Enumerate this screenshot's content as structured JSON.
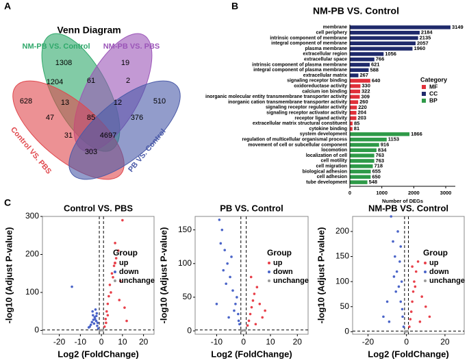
{
  "panel_labels": [
    "A",
    "B",
    "C"
  ],
  "chart_data": [
    {
      "type": "venn",
      "title": "Venn Diagram",
      "sets": [
        {
          "name": "NM-PB VS. Control",
          "color": "#2fa86a"
        },
        {
          "name": "NM-PB VS. PBS",
          "color": "#9b55b8"
        },
        {
          "name": "Control VS. PBS",
          "color": "#e0474c"
        },
        {
          "name": "PB VS. Control",
          "color": "#4a5aa8"
        }
      ],
      "values": [
        1308,
        19,
        628,
        510,
        1204,
        61,
        2,
        13,
        12,
        47,
        85,
        376,
        31,
        4697,
        303
      ]
    },
    {
      "type": "hbar",
      "title": "NM-PB VS. Control",
      "xlabel": "Number of DEGs",
      "legend_title": "Category",
      "categories": [
        "membrane",
        "cell periphery",
        "intrinsic component of membrane",
        "integral component of membrane",
        "plasma membrane",
        "extracellular region",
        "extracellular space",
        "intrinsic component of plasma membrane",
        "integral component of plasma membrane",
        "extracellular matrix",
        "signaling receptor binding",
        "oxidoreductase activity",
        "calcium ion binding",
        "inorganic molecular entity transmembrane transporter activity",
        "inorganic cation transmembrane transporter activity",
        "signaling receptor regulator activity",
        "signaling receptor activator activity",
        "receptor ligand activity",
        "extracellular matrix structural constituent",
        "cytokine binding",
        "system development",
        "regulation of multicellular organismal process",
        "movement of cell or subcellular component",
        "locomotion",
        "localization of cell",
        "cell motility",
        "cell migration",
        "biological adhesion",
        "cell adhesion",
        "tube development"
      ],
      "series": [
        {
          "name": "MF",
          "color": "#e0303a",
          "values": [
            null,
            null,
            null,
            null,
            null,
            null,
            null,
            null,
            null,
            null,
            640,
            330,
            322,
            309,
            260,
            220,
            204,
            203,
            85,
            81,
            null,
            null,
            null,
            null,
            null,
            null,
            null,
            null,
            null,
            null
          ]
        },
        {
          "name": "CC",
          "color": "#1f2a6b",
          "values": [
            3149,
            2184,
            2135,
            2057,
            1960,
            1056,
            766,
            621,
            588,
            267,
            null,
            null,
            null,
            null,
            null,
            null,
            null,
            null,
            null,
            null,
            null,
            null,
            null,
            null,
            null,
            null,
            null,
            null,
            null,
            null
          ]
        },
        {
          "name": "BP",
          "color": "#2e9a48",
          "values": [
            null,
            null,
            null,
            null,
            null,
            null,
            null,
            null,
            null,
            null,
            null,
            null,
            null,
            null,
            null,
            null,
            null,
            null,
            null,
            null,
            1866,
            1153,
            916,
            834,
            763,
            763,
            718,
            655,
            650,
            548
          ]
        }
      ],
      "xlim": [
        0,
        3300
      ],
      "xticks": [
        0,
        1000,
        2000,
        3000
      ]
    },
    {
      "type": "volcano",
      "title": "Control VS. PBS",
      "xlabel": "Log2 (FoldChange)",
      "ylabel": "-log10 (Adjust P-value)",
      "legend_title": "Group",
      "xlim": [
        -28,
        25
      ],
      "xticks": [
        -20,
        -10,
        0,
        10,
        20
      ],
      "ylim": [
        -10,
        300
      ],
      "yticks": [
        0,
        100,
        200,
        300
      ],
      "vlines": [
        -1,
        1
      ],
      "hline": 1.3,
      "series": [
        {
          "name": "up",
          "color": "#e8404a",
          "x": [
            1.5,
            2,
            2.5,
            3,
            3.5,
            4,
            5,
            6,
            7,
            8,
            9,
            10,
            11,
            3,
            4.5,
            2.2,
            6.5,
            8.5,
            5.5,
            12
          ],
          "values": [
            10,
            30,
            50,
            70,
            90,
            120,
            150,
            170,
            190,
            210,
            130,
            290,
            60,
            40,
            100,
            20,
            230,
            80,
            140,
            25
          ]
        },
        {
          "name": "down",
          "color": "#4a64c8",
          "x": [
            -1.5,
            -2,
            -2.5,
            -3,
            -3.5,
            -4,
            -4.5,
            -5,
            -6,
            -2.2,
            -3.2,
            -1.8,
            -4.2,
            -2.8,
            -5.5,
            -14,
            -3.8,
            -2.4
          ],
          "values": [
            5,
            12,
            25,
            30,
            18,
            40,
            22,
            15,
            8,
            45,
            35,
            20,
            50,
            55,
            10,
            115,
            28,
            38
          ]
        },
        {
          "name": "unchange",
          "color": "#999999",
          "x": [
            -0.5,
            0.3,
            -0.8,
            0.6
          ],
          "values": [
            0.5,
            1,
            0.2,
            0.8
          ]
        }
      ]
    },
    {
      "type": "volcano",
      "title": "PB VS. Control",
      "xlabel": "Log2 (FoldChange)",
      "ylabel": "-log10 (Adjust P-value)",
      "legend_title": "Group",
      "xlim": [
        -18,
        24
      ],
      "xticks": [
        -10,
        0,
        10,
        20
      ],
      "ylim": [
        -5,
        170
      ],
      "yticks": [
        0,
        50,
        100,
        150
      ],
      "vlines": [
        -1,
        1
      ],
      "hline": 1.3,
      "series": [
        {
          "name": "up",
          "color": "#e8404a",
          "x": [
            1.5,
            2,
            2.5,
            3,
            3.5,
            4,
            5,
            6,
            7,
            8,
            2.8,
            4.5
          ],
          "values": [
            8,
            15,
            25,
            35,
            45,
            55,
            65,
            40,
            20,
            30,
            80,
            10
          ]
        },
        {
          "name": "down",
          "color": "#4a64c8",
          "x": [
            -1.5,
            -2,
            -3,
            -4,
            -5,
            -6,
            -7,
            -8,
            -9,
            -10,
            -3.5,
            -2.5,
            -6.5,
            -4.5,
            -7.5,
            -5.5,
            -1.8,
            -8.5
          ],
          "values": [
            10,
            25,
            40,
            60,
            80,
            100,
            120,
            150,
            165,
            40,
            30,
            50,
            70,
            110,
            90,
            20,
            15,
            130
          ]
        },
        {
          "name": "unchange",
          "color": "#999999",
          "x": [
            -0.5,
            0.3,
            -0.8,
            0.6
          ],
          "values": [
            0.5,
            1,
            0.2,
            0.8
          ]
        }
      ]
    },
    {
      "type": "volcano",
      "title": "NM-PB VS. Control",
      "xlabel": "Log2 (FoldChange)",
      "ylabel": "-log10 (Adjust P-value)",
      "legend_title": "Group",
      "xlim": [
        -28,
        30
      ],
      "xticks": [
        -20,
        0,
        20
      ],
      "ylim": [
        -5,
        230
      ],
      "yticks": [
        0,
        50,
        100,
        150,
        200
      ],
      "vlines": [
        -1,
        1
      ],
      "hline": 1.3,
      "series": [
        {
          "name": "up",
          "color": "#e8404a",
          "x": [
            1.5,
            2,
            2.5,
            3,
            3.5,
            4,
            5,
            6,
            8,
            10,
            12,
            4.5,
            7,
            3
          ],
          "values": [
            10,
            25,
            40,
            60,
            80,
            100,
            120,
            140,
            70,
            50,
            30,
            90,
            20,
            130
          ]
        },
        {
          "name": "down",
          "color": "#4a64c8",
          "x": [
            -1.5,
            -2,
            -3,
            -4,
            -5,
            -6,
            -7,
            -8,
            -10,
            -12,
            -2.5,
            -3.5,
            -4.5,
            -5.5,
            -6.5,
            -3,
            -2.2,
            -9
          ],
          "values": [
            10,
            30,
            60,
            90,
            120,
            150,
            180,
            230,
            60,
            30,
            100,
            140,
            200,
            80,
            110,
            170,
            45,
            20
          ]
        },
        {
          "name": "unchange",
          "color": "#999999",
          "x": [
            -0.5,
            0.3,
            -0.8,
            0.6
          ],
          "values": [
            0.5,
            1,
            0.2,
            0.8
          ]
        }
      ]
    }
  ]
}
